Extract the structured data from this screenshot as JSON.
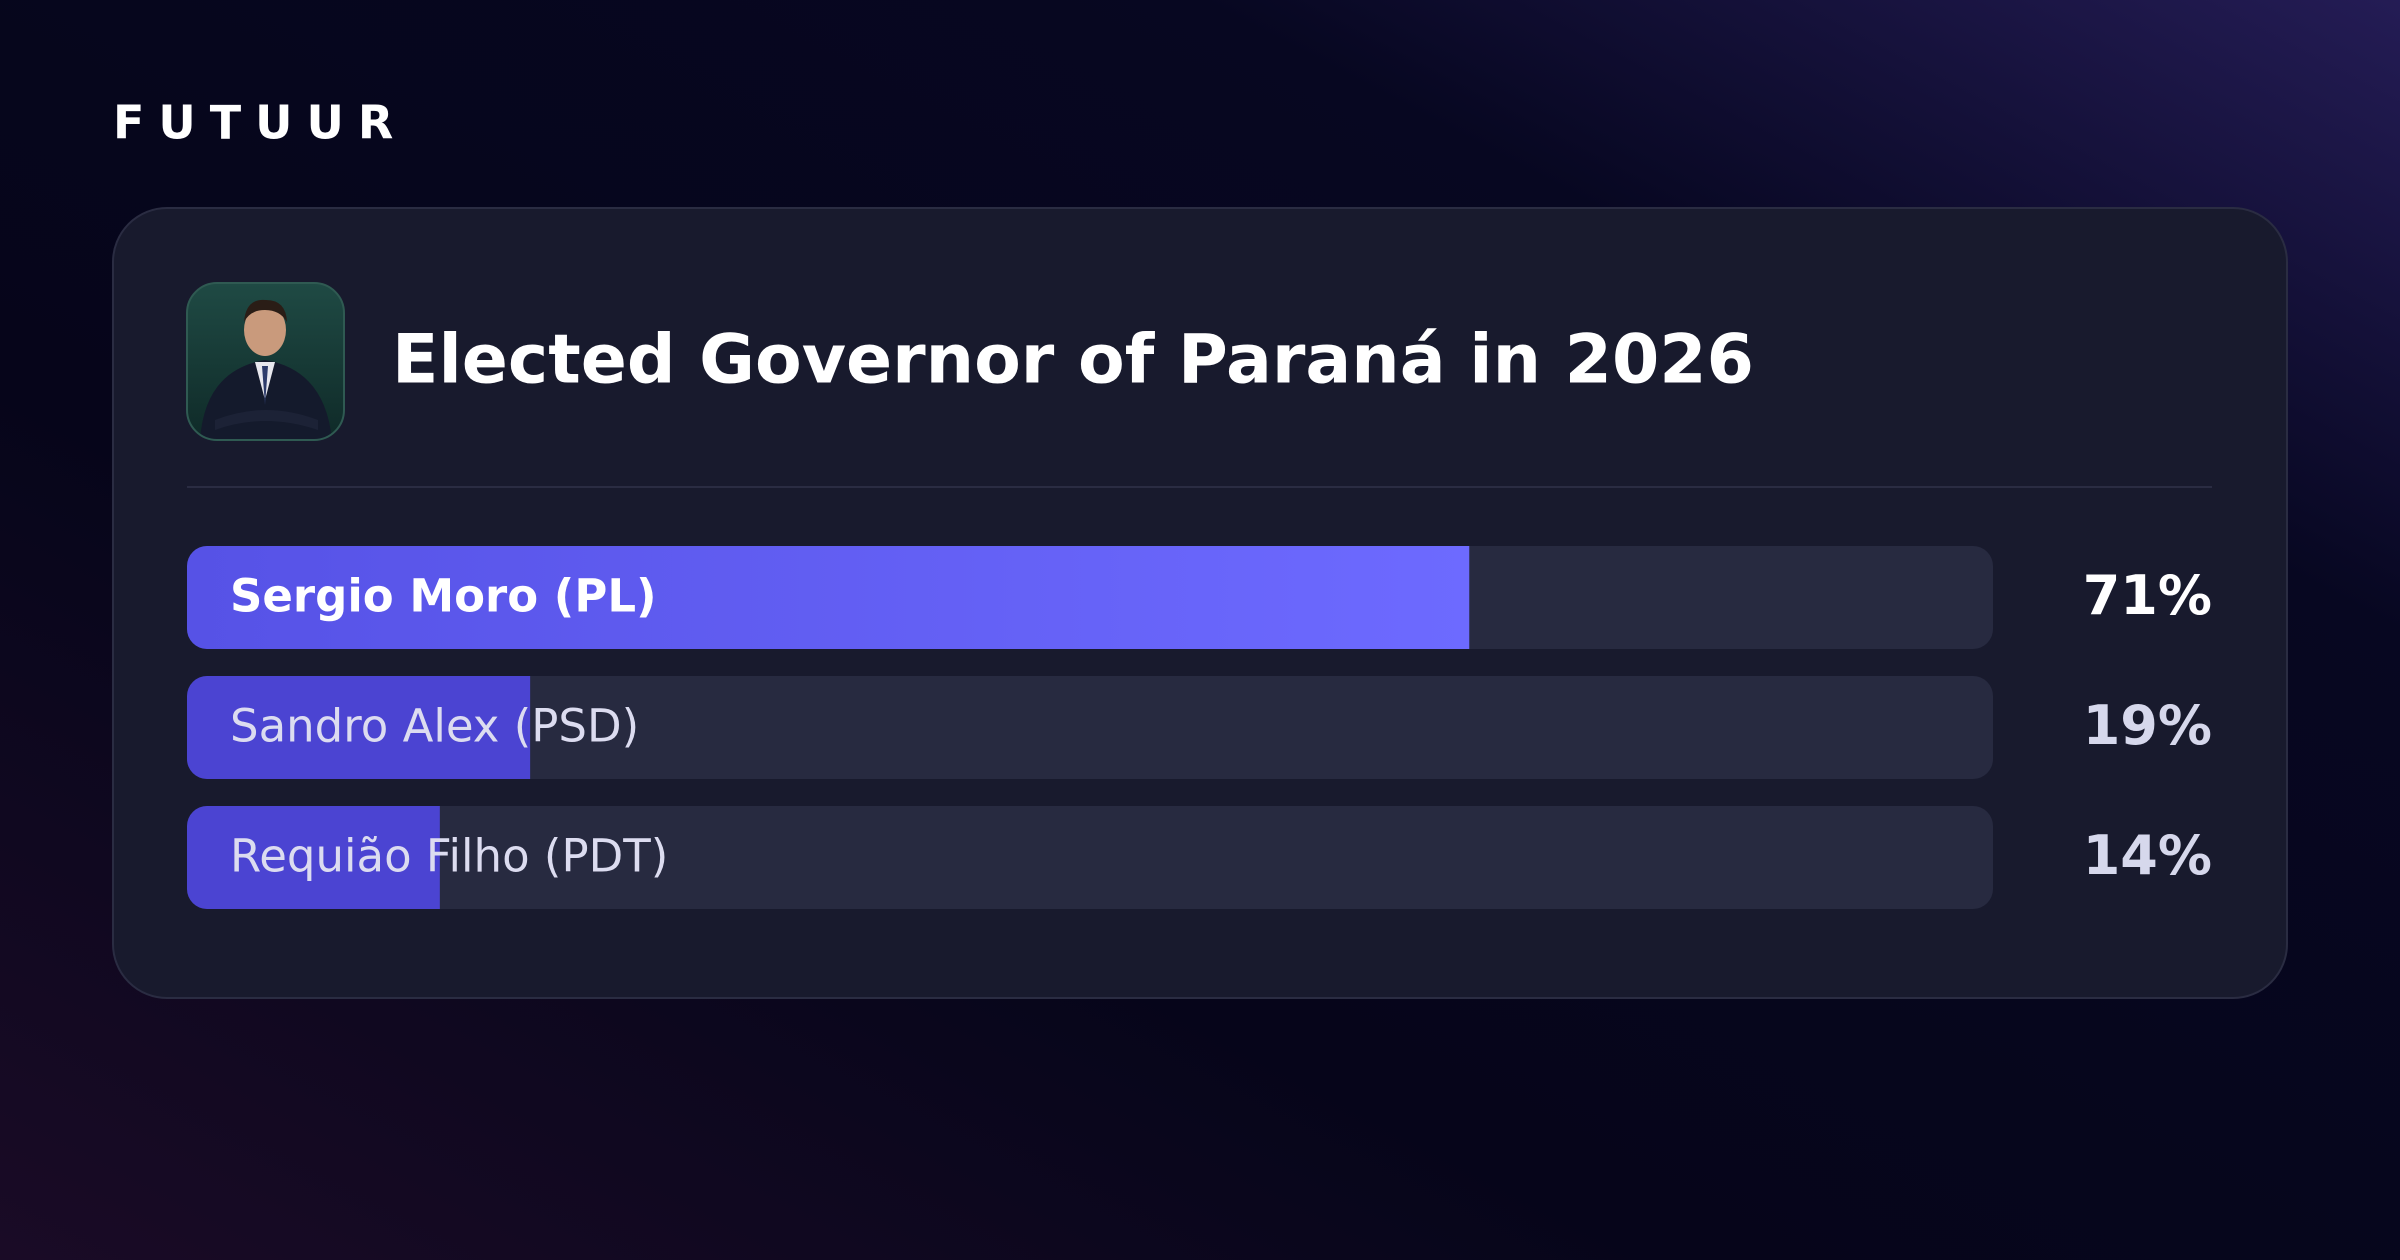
{
  "brand": "FUTUUR",
  "chart_data": {
    "type": "bar",
    "title": "Elected Governor of Paraná in 2026",
    "categories": [
      "Sergio Moro (PL)",
      "Sandro Alex (PSD)",
      "Requião Filho (PDT)"
    ],
    "values": [
      71,
      19,
      14
    ],
    "value_labels": [
      "71%",
      "19%",
      "14%"
    ],
    "colors": [
      "#6461f5",
      "#4b44d2",
      "#4b44d2"
    ],
    "xlim": [
      0,
      100
    ]
  }
}
